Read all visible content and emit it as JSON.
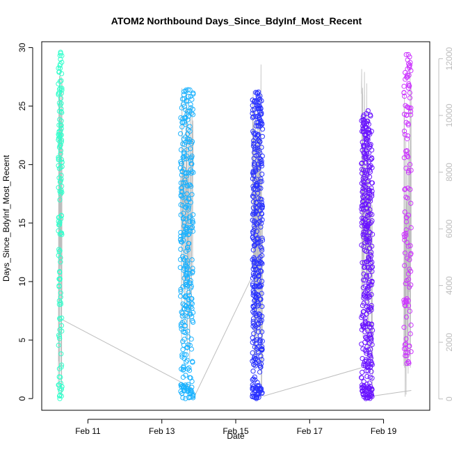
{
  "chart_data": {
    "type": "scatter",
    "title": "ATOM2 Northbound Days_Since_BdyInf_Most_Recent",
    "xlabel": "Date",
    "ylabel": "Days_Since_BdyInf_Most_Recent",
    "xlim": [
      "2017-02-09 18:00",
      "2017-02-20 06:00"
    ],
    "ylim": [
      -1,
      30.5
    ],
    "xticks": [
      "Feb 11",
      "Feb 13",
      "Feb 15",
      "Feb 17",
      "Feb 19"
    ],
    "yticks": [
      0,
      5,
      10,
      15,
      20,
      25,
      30
    ],
    "y2lim": [
      -400,
      12600
    ],
    "y2ticks": [
      0,
      2000,
      4000,
      6000,
      8000,
      10000,
      12000
    ],
    "grid": false,
    "legend": "none",
    "clusters": [
      {
        "x_start": "2017-02-10 04:48",
        "x_end": "2017-02-10 07:12",
        "y_min": 0,
        "y_max": 29.6,
        "color": "#33ffcc",
        "n": 140
      },
      {
        "x_start": "2017-02-13 12:00",
        "x_end": "2017-02-13 20:24",
        "y_min": 0,
        "y_max": 26.4,
        "color": "#1ab2ff",
        "n": 320
      },
      {
        "x_start": "2017-02-15 10:48",
        "x_end": "2017-02-15 17:24",
        "y_min": 0,
        "y_max": 26.2,
        "color": "#2a33ff",
        "n": 380
      },
      {
        "x_start": "2017-02-18 09:36",
        "x_end": "2017-02-18 16:48",
        "y_min": 0,
        "y_max": 24.6,
        "color": "#6a14ff",
        "n": 380
      },
      {
        "x_start": "2017-02-19 13:12",
        "x_end": "2017-02-19 18:00",
        "y_min": 3,
        "y_max": 29.4,
        "color": "#cc33ff",
        "n": 120
      }
    ],
    "secondary_line": {
      "color": "#bdbdbd",
      "axis": "right",
      "segments": [
        {
          "from": [
            "2017-02-10 07:12",
            2800
          ],
          "to": [
            "2017-02-13 19:12",
            400
          ]
        },
        {
          "from": [
            "2017-02-13 20:24",
            0
          ],
          "to": [
            "2017-02-15 09:36",
            4200
          ]
        },
        {
          "from": [
            "2017-02-15 18:00",
            100
          ],
          "to": [
            "2017-02-18 09:36",
            1100
          ]
        },
        {
          "from": [
            "2017-02-18 16:48",
            100
          ],
          "to": [
            "2017-02-19 18:00",
            300
          ]
        }
      ]
    }
  }
}
